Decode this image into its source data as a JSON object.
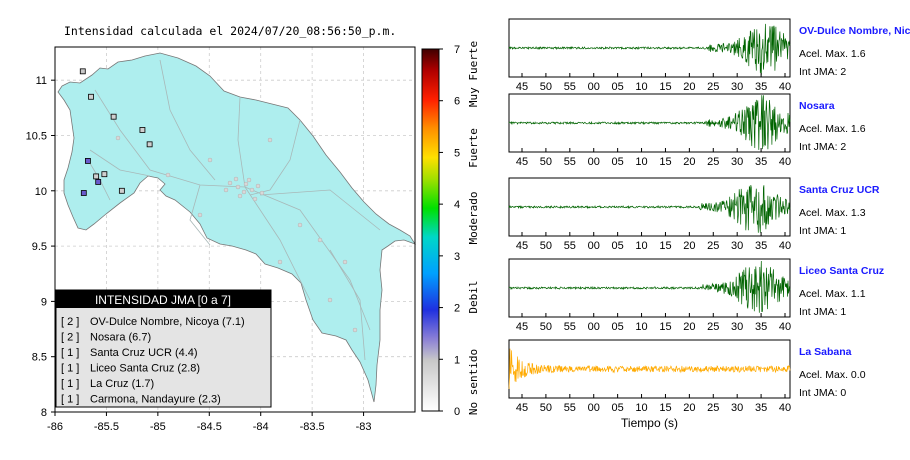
{
  "map": {
    "title": "Intensidad calculada el 2024/07/20_08:56:50_p.m.",
    "x_ticks": [
      "-86",
      "-85.5",
      "-85",
      "-84.5",
      "-84",
      "-83.5",
      "-83"
    ],
    "y_ticks": [
      "11",
      "10.5",
      "10",
      "9.5",
      "9",
      "8.5",
      "8"
    ],
    "xlim": [
      -86,
      -82.5
    ],
    "ylim": [
      8,
      11.3
    ],
    "land_color": "#aeeeee",
    "station_markers": [
      {
        "lon": -85.73,
        "lat": 11.08,
        "intensity": 2
      },
      {
        "lon": -85.65,
        "lat": 10.85,
        "intensity": 1
      },
      {
        "lon": -85.43,
        "lat": 10.67,
        "intensity": 1
      },
      {
        "lon": -85.15,
        "lat": 10.55,
        "intensity": 1
      },
      {
        "lon": -85.08,
        "lat": 10.42,
        "intensity": 1
      },
      {
        "lon": -85.68,
        "lat": 10.27,
        "intensity": 3
      },
      {
        "lon": -85.6,
        "lat": 10.13,
        "intensity": 1
      },
      {
        "lon": -85.52,
        "lat": 10.15,
        "intensity": 1
      },
      {
        "lon": -85.58,
        "lat": 10.08,
        "intensity": 3
      },
      {
        "lon": -85.35,
        "lat": 10.0,
        "intensity": 1
      },
      {
        "lon": -85.72,
        "lat": 9.98,
        "intensity": 3
      }
    ]
  },
  "legend": {
    "title": "INTENSIDAD JMA [0 a 7]",
    "items": [
      {
        "level": "[ 2 ]",
        "label": "OV-Dulce Nombre, Nicoya (7.1)"
      },
      {
        "level": "[ 2 ]",
        "label": "Nosara (6.7)"
      },
      {
        "level": "[ 1 ]",
        "label": "Santa Cruz UCR (4.4)"
      },
      {
        "level": "[ 1 ]",
        "label": "Liceo Santa Cruz (2.8)"
      },
      {
        "level": "[ 1 ]",
        "label": "La Cruz (1.7)"
      },
      {
        "level": "[ 1 ]",
        "label": "Carmona, Nandayure (2.3)"
      }
    ]
  },
  "colorbar": {
    "ticks": [
      "0",
      "1",
      "2",
      "3",
      "4",
      "5",
      "6",
      "7"
    ],
    "categories": [
      "No sentido",
      "Debil",
      "Moderado",
      "Fuerte",
      "Muy Fuerte"
    ],
    "range": [
      0,
      7
    ]
  },
  "chart_data": [
    {
      "type": "line",
      "station": "OV-Dulce Nombre, Nicoya",
      "accel_label": "Acel. Max. 1.6",
      "int_label": "Int JMA: 2",
      "color": "#006400",
      "x_ticks": [
        "45",
        "50",
        "55",
        "00",
        "05",
        "10",
        "15",
        "20",
        "25",
        "30",
        "35",
        "40"
      ],
      "peak_seconds": 37,
      "amplitude_profile": "late"
    },
    {
      "type": "line",
      "station": "Nosara",
      "accel_label": "Acel. Max. 1.6",
      "int_label": "Int JMA: 2",
      "color": "#006400",
      "x_ticks": [
        "45",
        "50",
        "55",
        "00",
        "05",
        "10",
        "15",
        "20",
        "25",
        "30",
        "35",
        "40"
      ],
      "peak_seconds": 36,
      "amplitude_profile": "late"
    },
    {
      "type": "line",
      "station": "Santa Cruz UCR",
      "accel_label": "Acel. Max. 1.3",
      "int_label": "Int JMA: 1",
      "color": "#006400",
      "x_ticks": [
        "45",
        "50",
        "55",
        "00",
        "05",
        "10",
        "15",
        "20",
        "25",
        "30",
        "35",
        "40"
      ],
      "peak_seconds": 34,
      "amplitude_profile": "late"
    },
    {
      "type": "line",
      "station": "Liceo Santa Cruz",
      "accel_label": "Acel. Max. 1.1",
      "int_label": "Int JMA: 1",
      "color": "#006400",
      "x_ticks": [
        "45",
        "50",
        "55",
        "00",
        "05",
        "10",
        "15",
        "20",
        "25",
        "30",
        "35",
        "40"
      ],
      "peak_seconds": 35,
      "amplitude_profile": "late"
    },
    {
      "type": "line",
      "station": "La Sabana",
      "accel_label": "Acel. Max. 0.0",
      "int_label": "Int JMA: 0",
      "color": "#ffaa00",
      "x_ticks": [
        "45",
        "50",
        "55",
        "00",
        "05",
        "10",
        "15",
        "20",
        "25",
        "30",
        "35",
        "40"
      ],
      "xlabel": "Tiempo (s)",
      "peak_seconds": 0,
      "amplitude_profile": "decay"
    }
  ]
}
